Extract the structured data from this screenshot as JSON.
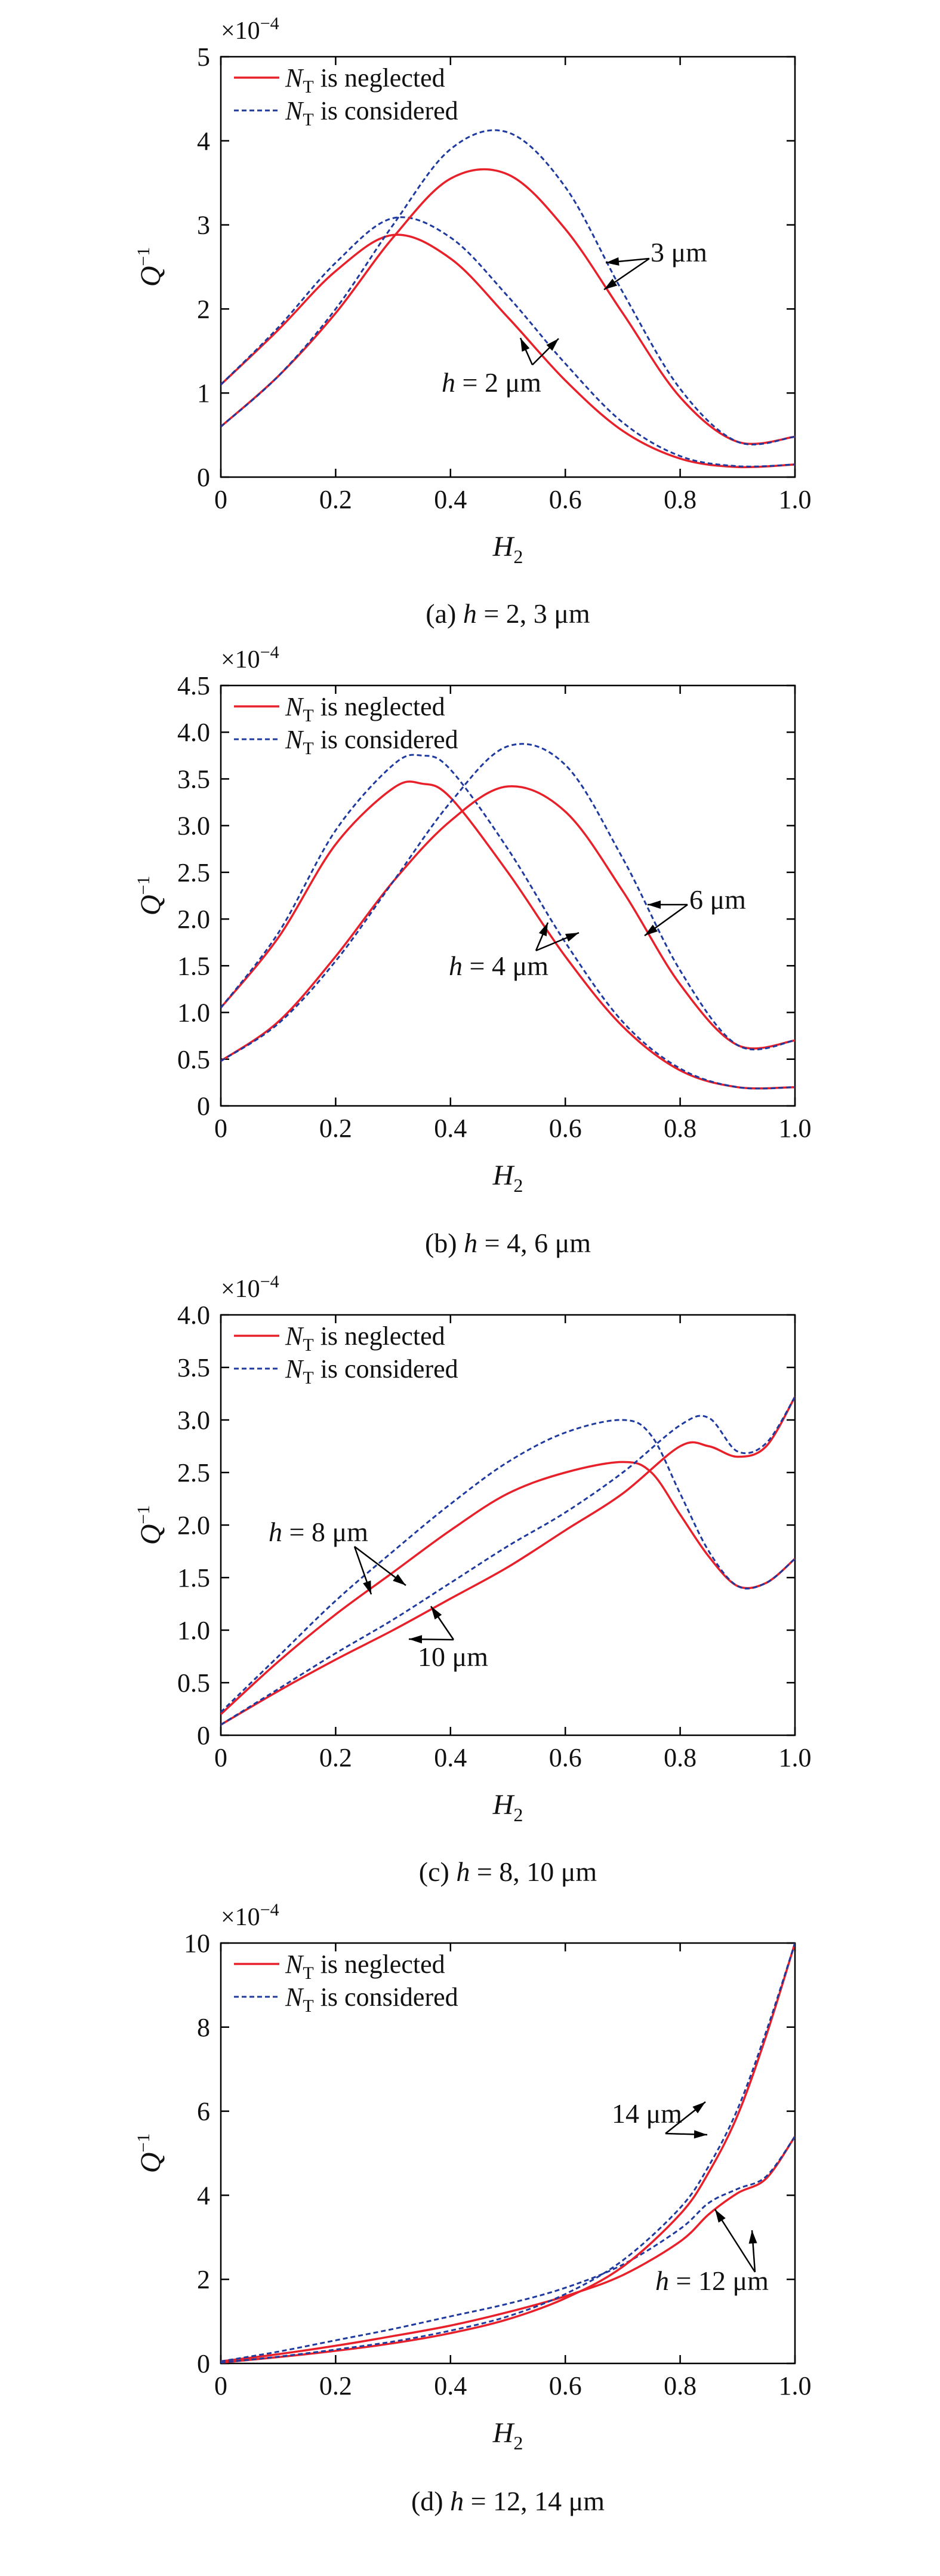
{
  "figure": {
    "legend": {
      "red_label_sym": "N",
      "red_label_sub": "T",
      "red_label_text": " is neglected",
      "blue_label_sym": "N",
      "blue_label_sub": "T",
      "blue_label_text": " is considered",
      "red_color": "#e8202a",
      "blue_color": "#1e3a9e"
    },
    "xlabel_sym": "H",
    "xlabel_sub": "2",
    "ylabel_sym": "Q",
    "ylabel_sup": "−1",
    "exponent_text": "×10",
    "exponent_sup": "−4"
  },
  "chart_data": [
    {
      "type": "line",
      "caption_prefix": "(a) ",
      "caption_var": "h",
      "caption_rest": " = 2, 3 μm",
      "xlim": [
        0,
        1
      ],
      "ylim": [
        0,
        5
      ],
      "xticks": [
        "0",
        "0.2",
        "0.4",
        "0.6",
        "0.8",
        "1.0"
      ],
      "yticks": [
        "0",
        "1",
        "2",
        "3",
        "4",
        "5"
      ],
      "annotations": [
        {
          "var": "",
          "text": "3 μm"
        },
        {
          "var": "h",
          "text": " = 2 μm"
        }
      ],
      "series": [
        {
          "name": "h = 2 μm, NT neglected",
          "style": "red",
          "x": [
            0,
            0.1,
            0.2,
            0.3,
            0.4,
            0.5,
            0.6,
            0.7,
            0.8,
            0.9,
            1.0
          ],
          "y": [
            1.1,
            1.75,
            2.45,
            2.88,
            2.6,
            1.9,
            1.15,
            0.55,
            0.22,
            0.12,
            0.15
          ]
        },
        {
          "name": "h = 2 μm, NT considered",
          "style": "blue",
          "x": [
            0,
            0.1,
            0.2,
            0.3,
            0.4,
            0.5,
            0.6,
            0.7,
            0.8,
            0.9,
            1.0
          ],
          "y": [
            1.1,
            1.78,
            2.55,
            3.08,
            2.85,
            2.15,
            1.35,
            0.65,
            0.25,
            0.13,
            0.15
          ]
        },
        {
          "name": "h = 3 μm, NT neglected",
          "style": "red",
          "x": [
            0,
            0.1,
            0.2,
            0.3,
            0.4,
            0.5,
            0.6,
            0.7,
            0.8,
            0.9,
            1.0
          ],
          "y": [
            0.6,
            1.2,
            1.95,
            2.85,
            3.55,
            3.6,
            2.95,
            1.95,
            0.95,
            0.42,
            0.48
          ]
        },
        {
          "name": "h = 3 μm, NT considered",
          "style": "blue",
          "x": [
            0,
            0.1,
            0.2,
            0.3,
            0.4,
            0.5,
            0.6,
            0.7,
            0.8,
            0.9,
            1.0
          ],
          "y": [
            0.6,
            1.2,
            2.0,
            3.0,
            3.9,
            4.1,
            3.45,
            2.2,
            1.05,
            0.42,
            0.48
          ]
        }
      ]
    },
    {
      "type": "line",
      "caption_prefix": "(b) ",
      "caption_var": "h",
      "caption_rest": " = 4, 6 μm",
      "xlim": [
        0,
        1
      ],
      "ylim": [
        0,
        4.5
      ],
      "xticks": [
        "0",
        "0.2",
        "0.4",
        "0.6",
        "0.8",
        "1.0"
      ],
      "yticks": [
        "0",
        "0.5",
        "1.0",
        "1.5",
        "2.0",
        "2.5",
        "3.0",
        "3.5",
        "4.0",
        "4.5"
      ],
      "annotations": [
        {
          "var": "",
          "text": "6 μm"
        },
        {
          "var": "h",
          "text": " = 4 μm"
        }
      ],
      "series": [
        {
          "name": "h = 4 μm, NT neglected",
          "style": "red",
          "x": [
            0,
            0.1,
            0.2,
            0.3,
            0.35,
            0.4,
            0.5,
            0.6,
            0.7,
            0.8,
            0.9,
            1.0
          ],
          "y": [
            1.05,
            1.8,
            2.8,
            3.4,
            3.45,
            3.3,
            2.5,
            1.6,
            0.85,
            0.38,
            0.2,
            0.2
          ]
        },
        {
          "name": "h = 4 μm, NT considered",
          "style": "blue",
          "x": [
            0,
            0.1,
            0.2,
            0.3,
            0.35,
            0.4,
            0.5,
            0.6,
            0.7,
            0.8,
            0.9,
            1.0
          ],
          "y": [
            1.05,
            1.85,
            2.95,
            3.65,
            3.75,
            3.6,
            2.75,
            1.75,
            0.9,
            0.4,
            0.2,
            0.2
          ]
        },
        {
          "name": "h = 6 μm, NT neglected",
          "style": "red",
          "x": [
            0,
            0.1,
            0.2,
            0.3,
            0.4,
            0.5,
            0.6,
            0.7,
            0.8,
            0.9,
            1.0
          ],
          "y": [
            0.48,
            0.9,
            1.6,
            2.4,
            3.05,
            3.42,
            3.15,
            2.3,
            1.3,
            0.65,
            0.7
          ]
        },
        {
          "name": "h = 6 μm, NT considered",
          "style": "blue",
          "x": [
            0,
            0.1,
            0.2,
            0.3,
            0.4,
            0.5,
            0.6,
            0.7,
            0.8,
            0.9,
            1.0
          ],
          "y": [
            0.48,
            0.88,
            1.55,
            2.4,
            3.25,
            3.85,
            3.65,
            2.65,
            1.45,
            0.65,
            0.7
          ]
        }
      ]
    },
    {
      "type": "line",
      "caption_prefix": "(c) ",
      "caption_var": "h",
      "caption_rest": " = 8, 10 μm",
      "xlim": [
        0,
        1
      ],
      "ylim": [
        0,
        4.0
      ],
      "xticks": [
        "0",
        "0.2",
        "0.4",
        "0.6",
        "0.8",
        "1.0"
      ],
      "yticks": [
        "0",
        "0.5",
        "1.0",
        "1.5",
        "2.0",
        "2.5",
        "3.0",
        "3.5",
        "4.0"
      ],
      "annotations": [
        {
          "var": "h",
          "text": " = 8 μm"
        },
        {
          "var": "",
          "text": "10 μm"
        }
      ],
      "series": [
        {
          "name": "h = 8 μm, NT neglected",
          "style": "red",
          "x": [
            0,
            0.1,
            0.2,
            0.3,
            0.4,
            0.5,
            0.6,
            0.7,
            0.75,
            0.8,
            0.85,
            0.9,
            0.95,
            1.0
          ],
          "y": [
            0.2,
            0.7,
            1.15,
            1.55,
            1.95,
            2.3,
            2.5,
            2.6,
            2.5,
            2.1,
            1.7,
            1.42,
            1.45,
            1.68
          ]
        },
        {
          "name": "h = 8 μm, NT considered",
          "style": "blue",
          "x": [
            0,
            0.1,
            0.2,
            0.3,
            0.4,
            0.5,
            0.6,
            0.7,
            0.75,
            0.8,
            0.85,
            0.9,
            0.95,
            1.0
          ],
          "y": [
            0.22,
            0.75,
            1.28,
            1.75,
            2.2,
            2.6,
            2.88,
            3.0,
            2.85,
            2.3,
            1.75,
            1.42,
            1.45,
            1.68
          ]
        },
        {
          "name": "h = 10 μm, NT neglected",
          "style": "red",
          "x": [
            0,
            0.1,
            0.2,
            0.3,
            0.4,
            0.5,
            0.6,
            0.7,
            0.8,
            0.85,
            0.9,
            0.95,
            1.0
          ],
          "y": [
            0.1,
            0.42,
            0.72,
            1.0,
            1.3,
            1.6,
            1.95,
            2.3,
            2.75,
            2.75,
            2.65,
            2.75,
            3.22
          ]
        },
        {
          "name": "h = 10 μm, NT considered",
          "style": "blue",
          "x": [
            0,
            0.1,
            0.2,
            0.3,
            0.4,
            0.5,
            0.6,
            0.7,
            0.8,
            0.85,
            0.9,
            0.95,
            1.0
          ],
          "y": [
            0.1,
            0.44,
            0.78,
            1.1,
            1.45,
            1.8,
            2.12,
            2.5,
            2.95,
            3.02,
            2.7,
            2.78,
            3.22
          ]
        }
      ]
    },
    {
      "type": "line",
      "caption_prefix": "(d) ",
      "caption_var": "h",
      "caption_rest": " = 12, 14 μm",
      "xlim": [
        0,
        1
      ],
      "ylim": [
        0,
        10
      ],
      "xticks": [
        "0",
        "0.2",
        "0.4",
        "0.6",
        "0.8",
        "1.0"
      ],
      "yticks": [
        "0",
        "2",
        "4",
        "6",
        "8",
        "10"
      ],
      "annotations": [
        {
          "var": "",
          "text": "14 μm"
        },
        {
          "var": "h",
          "text": " = 12 μm"
        }
      ],
      "series": [
        {
          "name": "h = 12 μm, NT neglected",
          "style": "red",
          "x": [
            0,
            0.1,
            0.2,
            0.3,
            0.4,
            0.5,
            0.6,
            0.7,
            0.8,
            0.85,
            0.9,
            0.95,
            1.0
          ],
          "y": [
            0.05,
            0.22,
            0.42,
            0.65,
            0.9,
            1.22,
            1.6,
            2.1,
            2.9,
            3.55,
            4.05,
            4.4,
            5.4
          ]
        },
        {
          "name": "h = 12 μm, NT considered",
          "style": "blue",
          "x": [
            0,
            0.1,
            0.2,
            0.3,
            0.4,
            0.5,
            0.6,
            0.7,
            0.8,
            0.85,
            0.9,
            0.95,
            1.0
          ],
          "y": [
            0.05,
            0.28,
            0.55,
            0.82,
            1.12,
            1.42,
            1.8,
            2.35,
            3.2,
            3.82,
            4.15,
            4.45,
            5.4
          ]
        },
        {
          "name": "h = 14 μm, NT neglected",
          "style": "red",
          "x": [
            0,
            0.1,
            0.2,
            0.3,
            0.4,
            0.5,
            0.6,
            0.7,
            0.8,
            0.85,
            0.9,
            0.95,
            1.0
          ],
          "y": [
            0.02,
            0.15,
            0.3,
            0.48,
            0.72,
            1.05,
            1.55,
            2.3,
            3.55,
            4.55,
            5.9,
            7.8,
            10.0
          ]
        },
        {
          "name": "h = 14 μm, NT considered",
          "style": "blue",
          "x": [
            0,
            0.1,
            0.2,
            0.3,
            0.4,
            0.5,
            0.6,
            0.7,
            0.8,
            0.85,
            0.9,
            0.95,
            1.0
          ],
          "y": [
            0.02,
            0.16,
            0.33,
            0.52,
            0.78,
            1.12,
            1.65,
            2.45,
            3.7,
            4.7,
            6.05,
            7.9,
            10.0
          ]
        }
      ]
    }
  ]
}
